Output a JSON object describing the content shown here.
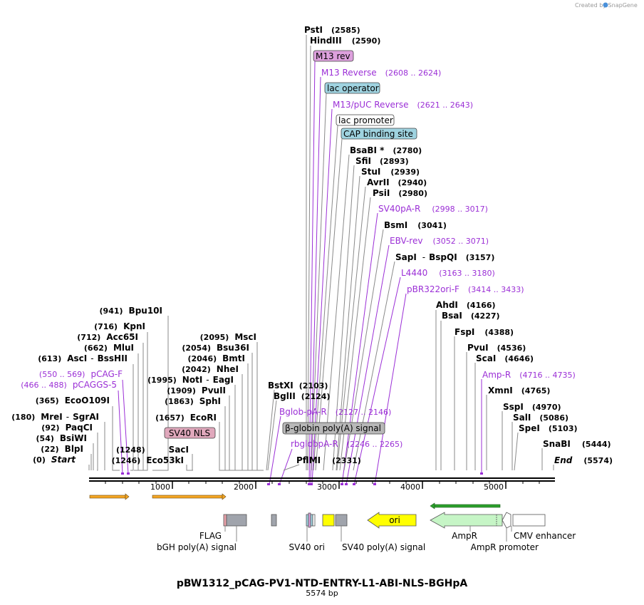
{
  "credit": "Created by SnapGene",
  "plasmid": {
    "name": "pBW1312_pCAG-PV1-NTD-ENTRY-L1-ABI-NLS-BGHpA",
    "size": "5574 bp"
  },
  "axis_ticks": [
    "1000",
    "2000",
    "3000",
    "4000",
    "5000"
  ],
  "left_sites": [
    {
      "pos": "(941)",
      "name": "Bpu10I"
    },
    {
      "pos": "(716)",
      "name": "KpnI"
    },
    {
      "pos": "(712)",
      "name": "Acc65I"
    },
    {
      "pos": "(662)",
      "name": "MluI"
    },
    {
      "pos": "(613)",
      "name": "AscI",
      "sep": "-",
      "name2": "BssHII"
    },
    {
      "pos": "(550 .. 569)",
      "name": "pCAG-F",
      "primer": true
    },
    {
      "pos": "(466 .. 488)",
      "name": "pCAGGS-5",
      "primer": true
    },
    {
      "pos": "(365)",
      "name": "EcoO109I"
    },
    {
      "pos": "(180)",
      "name": "MreI",
      "sep": "-",
      "name2": "SgrAI"
    },
    {
      "pos": "(92)",
      "name": "PaqCI"
    },
    {
      "pos": "(54)",
      "name": "BsiWI"
    },
    {
      "pos": "(22)",
      "name": "BlpI"
    },
    {
      "pos": "(0)",
      "name": "Start",
      "italic": true
    }
  ],
  "mid_sites": [
    {
      "pos": "(2095)",
      "name": "MscI"
    },
    {
      "pos": "(2054)",
      "name": "Bsu36I"
    },
    {
      "pos": "(2046)",
      "name": "BmtI"
    },
    {
      "pos": "(2042)",
      "name": "NheI"
    },
    {
      "pos": "(1995)",
      "name": "NotI",
      "sep": "-",
      "name2": "EagI"
    },
    {
      "pos": "(1909)",
      "name": "PvuII"
    },
    {
      "pos": "(1863)",
      "name": "SphI"
    },
    {
      "pos": "(1657)",
      "name": "EcoRI"
    },
    {
      "pos": "(1248)",
      "name": "SacI"
    },
    {
      "pos": "(1246)",
      "name": "Eco53kI"
    }
  ],
  "center_sites": [
    {
      "name": "BstXI",
      "pos": "(2103)"
    },
    {
      "name": "BglII",
      "pos": "(2124)"
    },
    {
      "name": "Bglob-pA-R",
      "pos": "(2127 .. 2146)",
      "primer": true
    },
    {
      "name": "rbglobpA-R",
      "pos": "(2246 .. 2265)",
      "primer": true
    },
    {
      "name": "PflMI",
      "pos": "(2331)"
    }
  ],
  "top_sites": [
    {
      "name": "PstI",
      "pos": "(2585)"
    },
    {
      "name": "HindIII",
      "pos": "(2590)"
    },
    {
      "name": "M13 rev",
      "box": "#dda0dd"
    },
    {
      "name": "M13 Reverse",
      "pos": "(2608 .. 2624)",
      "primer": true
    },
    {
      "name": "lac operator",
      "box": "#9fd3e0"
    },
    {
      "name": "M13/pUC Reverse",
      "pos": "(2621 .. 2643)",
      "primer": true
    },
    {
      "name": "lac promoter",
      "box": "#ffffff"
    },
    {
      "name": "CAP binding site",
      "box": "#9fd3e0"
    },
    {
      "name": "BsaBI *",
      "pos": "(2780)"
    },
    {
      "name": "SfiI",
      "pos": "(2893)"
    },
    {
      "name": "StuI",
      "pos": "(2939)"
    },
    {
      "name": "AvrII",
      "pos": "(2940)"
    },
    {
      "name": "PsiI",
      "pos": "(2980)"
    },
    {
      "name": "SV40pA-R",
      "pos": "(2998 .. 3017)",
      "primer": true
    },
    {
      "name": "BsmI",
      "pos": "(3041)"
    },
    {
      "name": "EBV-rev",
      "pos": "(3052 .. 3071)",
      "primer": true
    },
    {
      "name": "SapI",
      "sep": "-",
      "name2": "BspQI",
      "pos": "(3157)"
    },
    {
      "name": "L4440",
      "pos": "(3163 .. 3180)",
      "primer": true
    },
    {
      "name": "pBR322ori-F",
      "pos": "(3414 .. 3433)",
      "primer": true
    }
  ],
  "right_sites": [
    {
      "name": "AhdI",
      "pos": "(4166)"
    },
    {
      "name": "BsaI",
      "pos": "(4227)"
    },
    {
      "name": "FspI",
      "pos": "(4388)"
    },
    {
      "name": "PvuI",
      "pos": "(4536)"
    },
    {
      "name": "ScaI",
      "pos": "(4646)"
    },
    {
      "name": "Amp-R",
      "pos": "(4716 .. 4735)",
      "primer": true
    },
    {
      "name": "XmnI",
      "pos": "(4765)"
    },
    {
      "name": "SspI",
      "pos": "(4970)"
    },
    {
      "name": "SalI",
      "pos": "(5086)"
    },
    {
      "name": "SpeI",
      "pos": "(5103)"
    },
    {
      "name": "SnaBI",
      "pos": "(5444)"
    },
    {
      "name": "End",
      "pos": "(5574)",
      "italic": true
    }
  ],
  "feature_boxes": [
    {
      "name": "SV40 NLS",
      "color": "#e0a8bc"
    },
    {
      "name": "β-globin poly(A) signal",
      "color": "#b8b8b8"
    }
  ],
  "bottom_features": {
    "flag": "FLAG",
    "bgh": "bGH poly(A) signal",
    "sv40ori": "SV40 ori",
    "sv40pa": "SV40 poly(A) signal",
    "ori": "ori",
    "ampr": "AmpR",
    "ampr_promoter": "AmpR promoter",
    "cmv": "CMV enhancer"
  },
  "colors": {
    "primer": "#9b2fd6",
    "ori": "#ffff00",
    "ampr": "#c6f5c6",
    "orange_arrow": "#f5a623",
    "green_arrow": "#2ca02c",
    "feature_gray": "#a0a4ac"
  }
}
